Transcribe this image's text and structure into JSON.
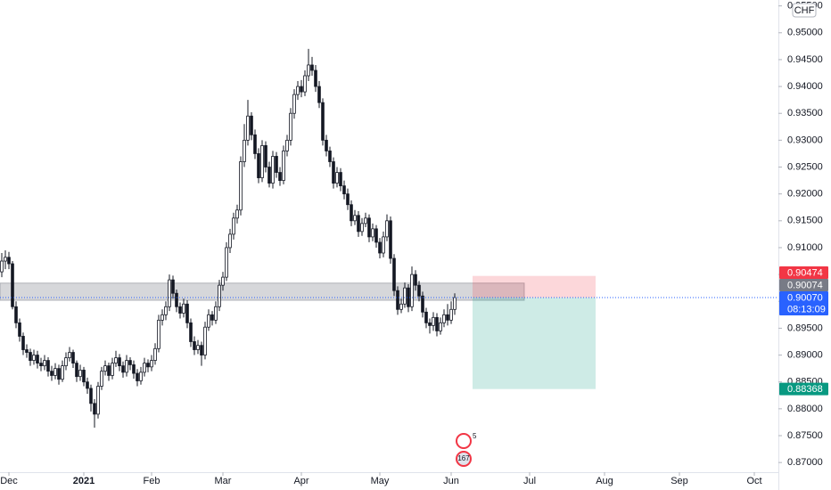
{
  "chart_data": {
    "type": "candlestick",
    "currency": "CHF",
    "up_color": "#ffffff",
    "down_color": "#131722",
    "wick_color": "#131722",
    "xlim": [
      -2.5,
      215.75
    ],
    "xticks": [
      {
        "value": 0,
        "label": "Dec"
      },
      {
        "value": 21,
        "label": "2021"
      },
      {
        "value": 40,
        "label": "Feb"
      },
      {
        "value": 60,
        "label": "Mar"
      },
      {
        "value": 82,
        "label": "Apr"
      },
      {
        "value": 104,
        "label": "May"
      },
      {
        "value": 124,
        "label": "Jun"
      },
      {
        "value": 146,
        "label": "Jul"
      },
      {
        "value": 167,
        "label": "Aug"
      },
      {
        "value": 188,
        "label": "Sep"
      },
      {
        "value": 209,
        "label": "Oct"
      }
    ],
    "ylim": [
      0.8682,
      0.9561
    ],
    "yticks": [
      {
        "value": 0.87,
        "label": "0.87000"
      },
      {
        "value": 0.875,
        "label": "0.87500"
      },
      {
        "value": 0.88,
        "label": "0.88000"
      },
      {
        "value": 0.885,
        "label": "0.88500"
      },
      {
        "value": 0.89,
        "label": "0.89000"
      },
      {
        "value": 0.895,
        "label": "0.89500"
      },
      {
        "value": 0.9,
        "label": "0.90000"
      },
      {
        "value": 0.905,
        "label": "0.90500"
      },
      {
        "value": 0.91,
        "label": "0.91000"
      },
      {
        "value": 0.915,
        "label": "0.91500"
      },
      {
        "value": 0.92,
        "label": "0.92000"
      },
      {
        "value": 0.925,
        "label": "0.92500"
      },
      {
        "value": 0.93,
        "label": "0.93000"
      },
      {
        "value": 0.935,
        "label": "0.93500"
      },
      {
        "value": 0.94,
        "label": "0.94000"
      },
      {
        "value": 0.945,
        "label": "0.94500"
      },
      {
        "value": 0.95,
        "label": "0.95000"
      },
      {
        "value": 0.955,
        "label": "0.95500"
      }
    ],
    "x": [
      -2,
      -1,
      0,
      1,
      2,
      3,
      4,
      5,
      6,
      7,
      8,
      9,
      10,
      11,
      12,
      13,
      14,
      15,
      16,
      17,
      18,
      19,
      20,
      21,
      22,
      23,
      24,
      25,
      26,
      27,
      28,
      29,
      30,
      31,
      32,
      33,
      34,
      35,
      36,
      37,
      38,
      39,
      40,
      41,
      42,
      43,
      44,
      45,
      46,
      47,
      48,
      49,
      50,
      51,
      52,
      53,
      54,
      55,
      56,
      57,
      58,
      59,
      60,
      61,
      62,
      63,
      64,
      65,
      66,
      67,
      68,
      69,
      70,
      71,
      72,
      73,
      74,
      75,
      76,
      77,
      78,
      79,
      80,
      81,
      82,
      83,
      84,
      85,
      86,
      87,
      88,
      89,
      90,
      91,
      92,
      93,
      94,
      95,
      96,
      97,
      98,
      99,
      100,
      101,
      102,
      103,
      104,
      105,
      106,
      107,
      108,
      109,
      110,
      111,
      112,
      113,
      114,
      115,
      116,
      117,
      118,
      119,
      120,
      121,
      122,
      123,
      124,
      125
    ],
    "ohlc": [
      [
        0.9055,
        0.909,
        0.9045,
        0.9075
      ],
      [
        0.9075,
        0.9095,
        0.906,
        0.9082
      ],
      [
        0.9082,
        0.9092,
        0.906,
        0.907
      ],
      [
        0.907,
        0.9075,
        0.8985,
        0.899
      ],
      [
        0.899,
        0.9,
        0.895,
        0.896
      ],
      [
        0.896,
        0.8968,
        0.8925,
        0.8935
      ],
      [
        0.8935,
        0.8942,
        0.89,
        0.891
      ],
      [
        0.891,
        0.892,
        0.8895,
        0.8905
      ],
      [
        0.8905,
        0.8912,
        0.888,
        0.889
      ],
      [
        0.889,
        0.891,
        0.8882,
        0.89
      ],
      [
        0.89,
        0.8908,
        0.8875,
        0.8885
      ],
      [
        0.8885,
        0.8895,
        0.887,
        0.888
      ],
      [
        0.888,
        0.89,
        0.8872,
        0.889
      ],
      [
        0.889,
        0.8896,
        0.886,
        0.887
      ],
      [
        0.887,
        0.888,
        0.8852,
        0.8862
      ],
      [
        0.8862,
        0.8885,
        0.8855,
        0.8875
      ],
      [
        0.8875,
        0.8882,
        0.8845,
        0.8855
      ],
      [
        0.8855,
        0.889,
        0.885,
        0.888
      ],
      [
        0.888,
        0.8905,
        0.8872,
        0.8895
      ],
      [
        0.8895,
        0.8915,
        0.8888,
        0.8905
      ],
      [
        0.8905,
        0.891,
        0.8876,
        0.8885
      ],
      [
        0.8885,
        0.889,
        0.885,
        0.886
      ],
      [
        0.886,
        0.8882,
        0.8852,
        0.8872
      ],
      [
        0.8872,
        0.8878,
        0.8842,
        0.885
      ],
      [
        0.885,
        0.8858,
        0.8828,
        0.8838
      ],
      [
        0.8838,
        0.8845,
        0.8795,
        0.881
      ],
      [
        0.881,
        0.8818,
        0.8765,
        0.879
      ],
      [
        0.879,
        0.885,
        0.8782,
        0.8842
      ],
      [
        0.8842,
        0.8878,
        0.8835,
        0.887
      ],
      [
        0.887,
        0.889,
        0.8862,
        0.888
      ],
      [
        0.888,
        0.8886,
        0.8852,
        0.8862
      ],
      [
        0.8862,
        0.8895,
        0.8855,
        0.8885
      ],
      [
        0.8885,
        0.8908,
        0.8878,
        0.8895
      ],
      [
        0.8895,
        0.8902,
        0.887,
        0.888
      ],
      [
        0.888,
        0.8888,
        0.8858,
        0.8868
      ],
      [
        0.8868,
        0.89,
        0.886,
        0.889
      ],
      [
        0.889,
        0.8896,
        0.8872,
        0.8882
      ],
      [
        0.8882,
        0.889,
        0.8856,
        0.8866
      ],
      [
        0.8866,
        0.8874,
        0.8842,
        0.8852
      ],
      [
        0.8852,
        0.8878,
        0.8845,
        0.8868
      ],
      [
        0.8868,
        0.8895,
        0.886,
        0.8885
      ],
      [
        0.8885,
        0.8892,
        0.8868,
        0.8878
      ],
      [
        0.8878,
        0.89,
        0.887,
        0.889
      ],
      [
        0.889,
        0.8922,
        0.8882,
        0.8912
      ],
      [
        0.8912,
        0.8975,
        0.8905,
        0.8965
      ],
      [
        0.8965,
        0.8985,
        0.8955,
        0.8975
      ],
      [
        0.8975,
        0.9,
        0.8965,
        0.899
      ],
      [
        0.899,
        0.905,
        0.8982,
        0.904
      ],
      [
        0.904,
        0.9048,
        0.9005,
        0.9015
      ],
      [
        0.9015,
        0.9022,
        0.898,
        0.899
      ],
      [
        0.899,
        0.8998,
        0.8968,
        0.8978
      ],
      [
        0.8978,
        0.9005,
        0.897,
        0.8995
      ],
      [
        0.8995,
        0.9002,
        0.895,
        0.896
      ],
      [
        0.896,
        0.8968,
        0.8915,
        0.8925
      ],
      [
        0.8925,
        0.8935,
        0.89,
        0.891
      ],
      [
        0.891,
        0.8928,
        0.8902,
        0.8918
      ],
      [
        0.8918,
        0.8925,
        0.888,
        0.89
      ],
      [
        0.89,
        0.8962,
        0.8892,
        0.8952
      ],
      [
        0.8952,
        0.8985,
        0.8945,
        0.8975
      ],
      [
        0.8975,
        0.8982,
        0.8955,
        0.8965
      ],
      [
        0.8965,
        0.9,
        0.8958,
        0.899
      ],
      [
        0.899,
        0.904,
        0.8982,
        0.903
      ],
      [
        0.903,
        0.9055,
        0.902,
        0.9045
      ],
      [
        0.9045,
        0.911,
        0.9038,
        0.91
      ],
      [
        0.91,
        0.9135,
        0.909,
        0.9125
      ],
      [
        0.9125,
        0.9165,
        0.9115,
        0.9155
      ],
      [
        0.9155,
        0.918,
        0.9145,
        0.917
      ],
      [
        0.917,
        0.927,
        0.916,
        0.926
      ],
      [
        0.926,
        0.933,
        0.925,
        0.93
      ],
      [
        0.93,
        0.9375,
        0.929,
        0.9345
      ],
      [
        0.9345,
        0.9352,
        0.93,
        0.931
      ],
      [
        0.931,
        0.932,
        0.9265,
        0.9275
      ],
      [
        0.9275,
        0.9285,
        0.922,
        0.923
      ],
      [
        0.923,
        0.93,
        0.9222,
        0.929
      ],
      [
        0.929,
        0.9298,
        0.924,
        0.925
      ],
      [
        0.925,
        0.926,
        0.9212,
        0.922
      ],
      [
        0.922,
        0.928,
        0.921,
        0.927
      ],
      [
        0.927,
        0.9278,
        0.923,
        0.924
      ],
      [
        0.924,
        0.925,
        0.9215,
        0.9225
      ],
      [
        0.9225,
        0.929,
        0.9218,
        0.928
      ],
      [
        0.928,
        0.931,
        0.927,
        0.93
      ],
      [
        0.93,
        0.936,
        0.929,
        0.935
      ],
      [
        0.935,
        0.9395,
        0.934,
        0.9385
      ],
      [
        0.9385,
        0.941,
        0.9375,
        0.94
      ],
      [
        0.94,
        0.9412,
        0.938,
        0.939
      ],
      [
        0.939,
        0.943,
        0.9382,
        0.942
      ],
      [
        0.942,
        0.947,
        0.941,
        0.944
      ],
      [
        0.944,
        0.9455,
        0.942,
        0.943
      ],
      [
        0.943,
        0.944,
        0.939,
        0.94
      ],
      [
        0.94,
        0.941,
        0.936,
        0.937
      ],
      [
        0.937,
        0.9378,
        0.929,
        0.93
      ],
      [
        0.93,
        0.931,
        0.927,
        0.928
      ],
      [
        0.928,
        0.9288,
        0.925,
        0.926
      ],
      [
        0.926,
        0.9268,
        0.921,
        0.922
      ],
      [
        0.922,
        0.925,
        0.9212,
        0.924
      ],
      [
        0.924,
        0.9248,
        0.9205,
        0.9215
      ],
      [
        0.9215,
        0.9225,
        0.919,
        0.92
      ],
      [
        0.92,
        0.921,
        0.917,
        0.918
      ],
      [
        0.918,
        0.9188,
        0.914,
        0.915
      ],
      [
        0.915,
        0.917,
        0.9142,
        0.916
      ],
      [
        0.916,
        0.9168,
        0.912,
        0.913
      ],
      [
        0.913,
        0.9155,
        0.9122,
        0.9145
      ],
      [
        0.9145,
        0.9165,
        0.9138,
        0.9155
      ],
      [
        0.9155,
        0.9162,
        0.911,
        0.912
      ],
      [
        0.912,
        0.9145,
        0.9112,
        0.9135
      ],
      [
        0.9135,
        0.9142,
        0.91,
        0.911
      ],
      [
        0.911,
        0.9118,
        0.908,
        0.909
      ],
      [
        0.909,
        0.913,
        0.9082,
        0.912
      ],
      [
        0.912,
        0.9162,
        0.9112,
        0.915
      ],
      [
        0.915,
        0.9158,
        0.907,
        0.908
      ],
      [
        0.908,
        0.9088,
        0.901,
        0.902
      ],
      [
        0.902,
        0.9028,
        0.8975,
        0.8985
      ],
      [
        0.8985,
        0.9005,
        0.8978,
        0.8995
      ],
      [
        0.8995,
        0.9035,
        0.8988,
        0.9025
      ],
      [
        0.9025,
        0.9032,
        0.898,
        0.899
      ],
      [
        0.899,
        0.9065,
        0.8982,
        0.905
      ],
      [
        0.905,
        0.9058,
        0.902,
        0.903
      ],
      [
        0.903,
        0.9038,
        0.9,
        0.901
      ],
      [
        0.901,
        0.9018,
        0.897,
        0.898
      ],
      [
        0.898,
        0.8988,
        0.895,
        0.896
      ],
      [
        0.896,
        0.8968,
        0.894,
        0.8955
      ],
      [
        0.8955,
        0.898,
        0.8945,
        0.897
      ],
      [
        0.897,
        0.8978,
        0.8935,
        0.8945
      ],
      [
        0.8945,
        0.897,
        0.8938,
        0.896
      ],
      [
        0.896,
        0.8985,
        0.8952,
        0.8975
      ],
      [
        0.8975,
        0.8995,
        0.8955,
        0.8965
      ],
      [
        0.8965,
        0.9,
        0.8958,
        0.8985
      ],
      [
        0.8985,
        0.9015,
        0.8975,
        0.9007
      ]
    ],
    "zone": {
      "x": [
        -2.5,
        144.5
      ],
      "y": [
        0.9002,
        0.9034
      ],
      "color": "#787b86"
    },
    "level": {
      "value": 0.90074,
      "label": "0.90074",
      "color": "#787b86"
    },
    "position": {
      "x": [
        130,
        164.5
      ],
      "stop": {
        "value": 0.90474,
        "label": "0.90474",
        "color": "#f23645"
      },
      "entry": {
        "value": 0.9007,
        "label": "0.90070",
        "countdown": "08:13:09",
        "color": "#2962ff"
      },
      "target": {
        "value": 0.88368,
        "label": "0.88368",
        "color": "#089981"
      }
    },
    "badges": [
      "5",
      "167"
    ]
  }
}
